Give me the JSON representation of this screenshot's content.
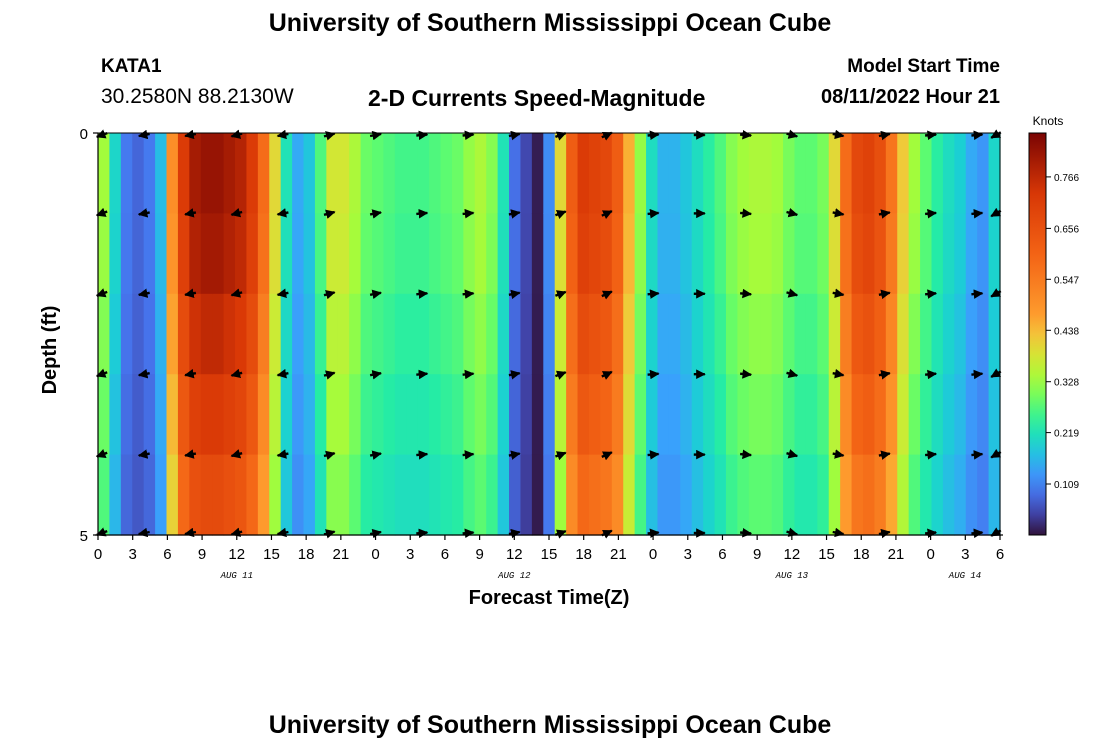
{
  "header": {
    "title": "University of Southern Mississippi Ocean Cube",
    "station": "KATA1",
    "coords": "30.2580N  88.2130W",
    "subtitle": "2-D Currents Speed-Magnitude",
    "model_label": "Model Start Time",
    "model_time": "08/11/2022 Hour 21"
  },
  "footer": {
    "title": "University of Southern Mississippi Ocean Cube"
  },
  "chart_data": {
    "type": "heatmap",
    "title": "2-D Currents Speed-Magnitude",
    "xlabel": "Forecast Time(Z)",
    "ylabel": "Depth (ft)",
    "ylim": [
      0,
      5
    ],
    "y_ticks": [
      "0",
      "5"
    ],
    "x_tick_labels": [
      "0",
      "3",
      "6",
      "9",
      "12",
      "15",
      "18",
      "21",
      "0",
      "3",
      "6",
      "9",
      "12",
      "15",
      "18",
      "21",
      "0",
      "3",
      "6",
      "9",
      "12",
      "15",
      "18",
      "21",
      "0",
      "3",
      "6"
    ],
    "date_labels": [
      "AUG 11",
      "AUG 12",
      "AUG 13",
      "AUG 14"
    ],
    "colorbar": {
      "label": "Knots",
      "ticks": [
        "0.766",
        "0.656",
        "0.547",
        "0.438",
        "0.328",
        "0.219",
        "0.109"
      ],
      "range": [
        0.0,
        0.86
      ]
    },
    "time_hours": [
      0,
      1,
      2,
      3,
      4,
      5,
      6,
      7,
      8,
      9,
      10,
      11,
      12,
      13,
      14,
      15,
      16,
      17,
      18,
      19,
      20,
      21,
      22,
      23,
      24,
      25,
      26,
      27,
      28,
      29,
      30,
      31,
      32,
      33,
      34,
      35,
      36,
      37,
      38,
      39,
      40,
      41,
      42,
      43,
      44,
      45,
      46,
      47,
      48,
      49,
      50,
      51,
      52,
      53,
      54,
      55,
      56,
      57,
      58,
      59,
      60,
      61,
      62,
      63,
      64,
      65,
      66,
      67,
      68,
      69,
      70,
      71,
      72,
      73,
      74,
      75,
      76,
      77,
      78
    ],
    "speed_surface_knots": [
      0.33,
      0.2,
      0.1,
      0.08,
      0.1,
      0.17,
      0.5,
      0.72,
      0.8,
      0.82,
      0.82,
      0.8,
      0.78,
      0.72,
      0.58,
      0.4,
      0.22,
      0.15,
      0.18,
      0.27,
      0.38,
      0.38,
      0.34,
      0.29,
      0.28,
      0.27,
      0.26,
      0.26,
      0.26,
      0.27,
      0.28,
      0.29,
      0.32,
      0.34,
      0.31,
      0.22,
      0.09,
      0.05,
      0.01,
      0.12,
      0.4,
      0.62,
      0.72,
      0.7,
      0.68,
      0.62,
      0.45,
      0.32,
      0.21,
      0.16,
      0.16,
      0.18,
      0.21,
      0.24,
      0.27,
      0.31,
      0.33,
      0.34,
      0.34,
      0.33,
      0.3,
      0.28,
      0.28,
      0.3,
      0.4,
      0.58,
      0.68,
      0.7,
      0.66,
      0.56,
      0.42,
      0.33,
      0.28,
      0.24,
      0.21,
      0.19,
      0.15,
      0.13,
      0.2
    ],
    "depth_factor": [
      1.0,
      0.98,
      0.93,
      0.88,
      0.82
    ],
    "arrow_times": [
      0,
      4,
      8,
      12,
      16,
      20,
      24,
      28,
      32,
      36,
      40,
      44,
      48,
      52,
      56,
      60,
      64,
      68,
      72,
      76,
      78
    ],
    "arrow_depths_ft": [
      0,
      1,
      2,
      3,
      4,
      5
    ],
    "arrow_direction_deg": [
      200,
      190,
      190,
      195,
      190,
      15,
      10,
      5,
      5,
      10,
      20,
      25,
      5,
      0,
      355,
      345,
      350,
      10,
      5,
      5,
      210
    ]
  }
}
